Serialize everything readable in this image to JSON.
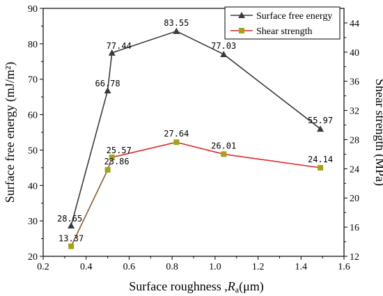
{
  "chart_data": {
    "type": "line",
    "xlabel": "Surface roughness ,",
    "xlabel_symbol": "R",
    "xlabel_subscript": "a",
    "xlabel_unit": "(μm)",
    "ylabel_left": "Surface free energy (mJ/m²)",
    "ylabel_right": "Shear strength (MPa)",
    "xlim": [
      0.2,
      1.6
    ],
    "ylim_left": [
      20,
      90
    ],
    "ylim_right": [
      12,
      46
    ],
    "x_ticks": [
      "0.2",
      "0.4",
      "0.6",
      "0.8",
      "1.0",
      "1.2",
      "1.4",
      "1.6"
    ],
    "y_left_ticks": [
      "20",
      "30",
      "40",
      "50",
      "60",
      "70",
      "80",
      "90"
    ],
    "y_right_ticks": [
      "12",
      "16",
      "20",
      "24",
      "28",
      "32",
      "36",
      "40",
      "44"
    ],
    "legend_position": "top-right",
    "series": [
      {
        "name": "Surface free energy",
        "axis": "left",
        "color": "#3a3a3a",
        "marker": "triangle",
        "x": [
          0.33,
          0.5,
          0.52,
          0.82,
          1.04,
          1.49
        ],
        "y": [
          28.65,
          66.78,
          77.44,
          83.55,
          77.03,
          55.97
        ],
        "labels": [
          "28.65",
          "66.78",
          "77.44",
          "83.55",
          "77.03",
          "55.97"
        ]
      },
      {
        "name": "Shear strength",
        "axis": "right",
        "color": "#e0262a",
        "marker_color": "#a3a31a",
        "marker": "square",
        "x": [
          0.33,
          0.5,
          0.52,
          0.82,
          1.04,
          1.49
        ],
        "y": [
          13.37,
          23.86,
          25.57,
          27.64,
          26.01,
          24.14
        ],
        "labels": [
          "13.37",
          "23.86",
          "25.57",
          "27.64",
          "26.01",
          "24.14"
        ]
      }
    ]
  }
}
